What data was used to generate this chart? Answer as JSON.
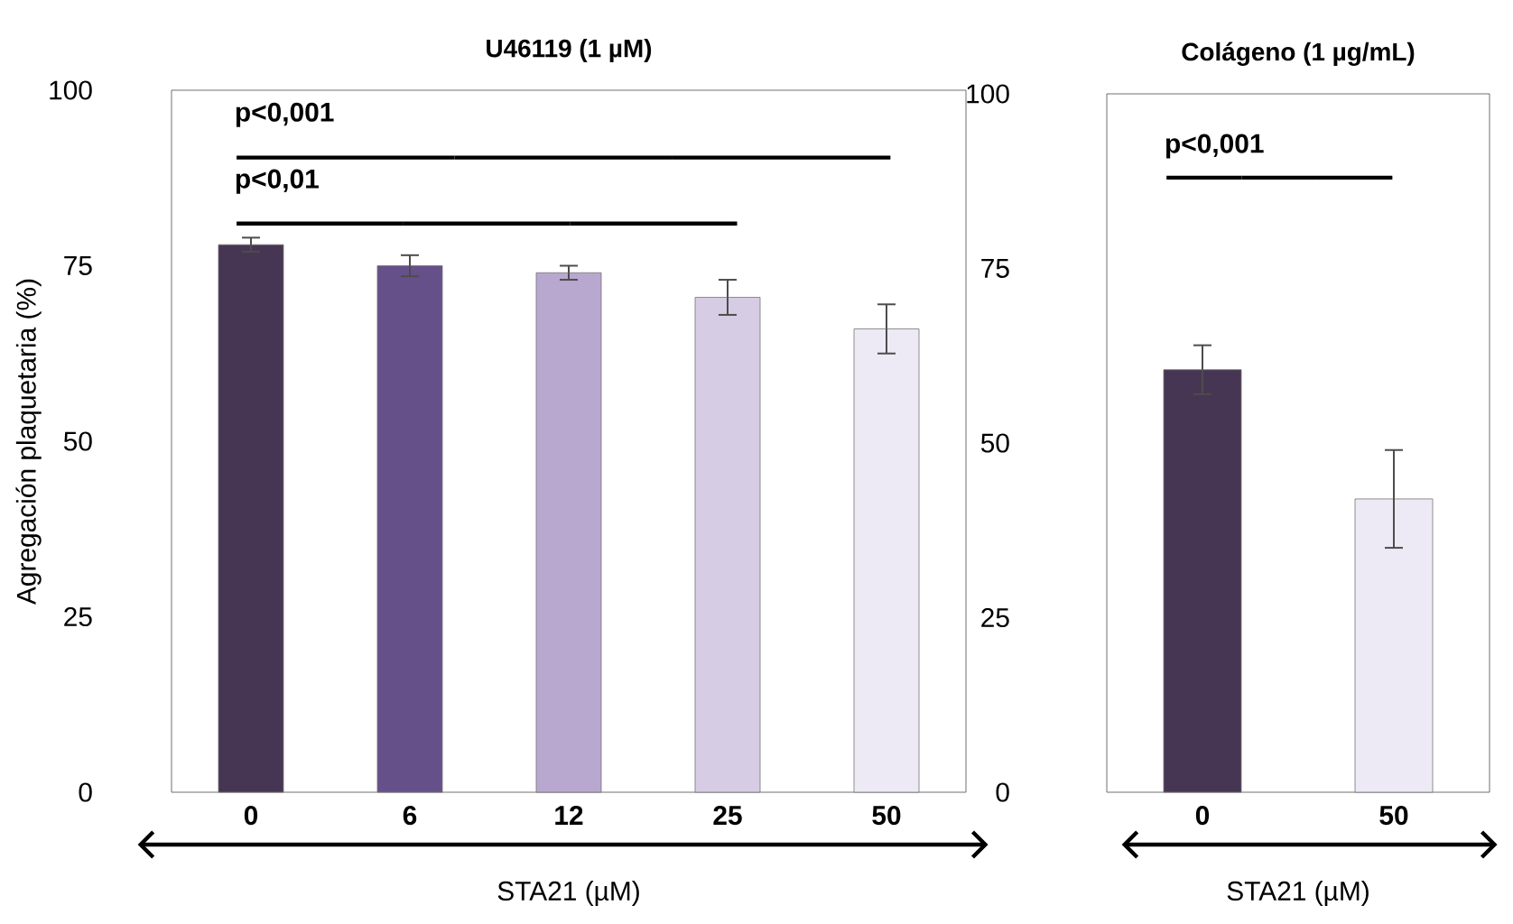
{
  "chart_data": [
    {
      "type": "bar",
      "title": "U46119 (1 µM)",
      "xlabel": "STA21 (µM)",
      "ylabel": "Agregación plaquetaria (%)",
      "categories": [
        "0",
        "6",
        "12",
        "25",
        "50"
      ],
      "values": [
        78,
        75,
        74,
        70.5,
        66
      ],
      "errors": [
        1,
        1.5,
        1,
        2.5,
        3.5
      ],
      "colors": [
        "#463653",
        "#66508a",
        "#b8a8d0",
        "#d6cce4",
        "#eeeaf5"
      ],
      "ylim": [
        0,
        100
      ],
      "yticks": [
        0,
        25,
        50,
        75,
        100
      ],
      "grid": false,
      "annotations": [
        "p<0,001",
        "p<0,01"
      ]
    },
    {
      "type": "bar",
      "title": "Colágeno (1 µg/mL)",
      "xlabel": "STA21 (µM)",
      "categories": [
        "0",
        "50"
      ],
      "values": [
        60.5,
        42
      ],
      "errors": [
        3.5,
        7
      ],
      "colors": [
        "#463653",
        "#eeeaf5"
      ],
      "ylim": [
        0,
        100
      ],
      "yticks": [
        0,
        25,
        50,
        75,
        100
      ],
      "grid": false,
      "annotations": [
        "p<0,001"
      ]
    }
  ]
}
